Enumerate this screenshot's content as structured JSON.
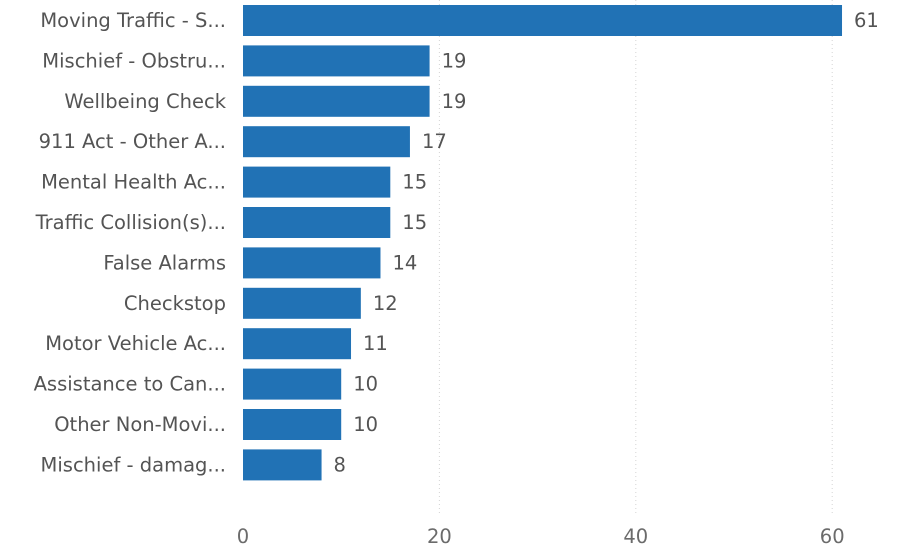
{
  "chart_data": {
    "type": "bar",
    "orientation": "horizontal",
    "categories": [
      "Moving Traffic - S...",
      "Mischief - Obstru...",
      "Wellbeing Check",
      "911 Act - Other A...",
      "Mental Health Ac...",
      "Traffic Collision(s)...",
      "False Alarms",
      "Checkstop",
      "Motor Vehicle Ac...",
      "Assistance to Can...",
      "Other Non-Movi...",
      "Mischief - damag..."
    ],
    "values": [
      61,
      19,
      19,
      17,
      15,
      15,
      14,
      12,
      11,
      10,
      10,
      8
    ],
    "xlim": [
      0,
      65
    ],
    "xticks": [
      0,
      20,
      40,
      60
    ],
    "grid": true,
    "data_labels": true,
    "legend": "none",
    "bar_color": "#2172B5"
  }
}
